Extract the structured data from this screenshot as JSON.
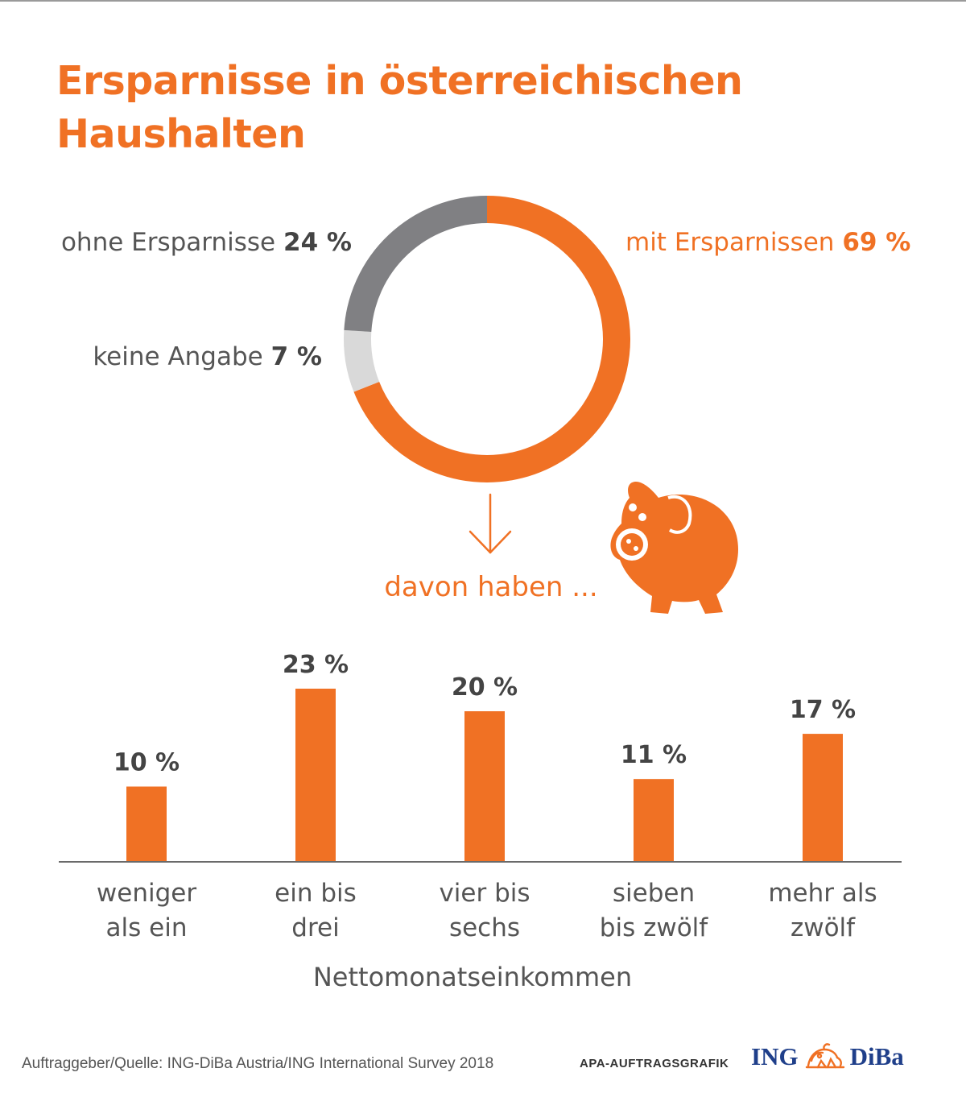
{
  "title_lines": [
    "Ersparnisse in österreichischen",
    "Haushalten"
  ],
  "colors": {
    "orange": "#f07124",
    "dark_gray": "#808083",
    "light_gray": "#d9d9d9",
    "text_gray": "#555555",
    "value_text": "#444444",
    "logo_blue": "#1f3f8a"
  },
  "chart_data": [
    {
      "type": "pie",
      "donut": true,
      "slices": [
        {
          "label": "mit Ersparnissen",
          "value_text": "69 %",
          "value": 69,
          "color": "#f07124"
        },
        {
          "label": "keine Angabe",
          "value_text": "7 %",
          "value": 7,
          "color": "#d9d9d9"
        },
        {
          "label": "ohne Ersparnisse",
          "value_text": "24 %",
          "value": 24,
          "color": "#808083"
        }
      ]
    },
    {
      "type": "bar",
      "caption": "davon haben ...",
      "xlabel": "Nettomonatseinkommen",
      "ylim": [
        0,
        23
      ],
      "categories": [
        [
          "weniger",
          "als ein"
        ],
        [
          "ein bis",
          "drei"
        ],
        [
          "vier bis",
          "sechs"
        ],
        [
          "sieben",
          "bis zwölf"
        ],
        [
          "mehr als",
          "zwölf"
        ]
      ],
      "values": [
        10,
        23,
        20,
        11,
        17
      ],
      "value_labels": [
        "10 %",
        "23 %",
        "20 %",
        "11 %",
        "17 %"
      ],
      "grid": false
    }
  ],
  "footer": {
    "source": "Auftraggeber/Quelle: ING-DiBa Austria/ING International Survey 2018",
    "apa": "APA-AUFTRAGSGRAFIK",
    "logo_left": "ING",
    "logo_right": "DiBa"
  },
  "icons": [
    "piggy-bank-icon",
    "arrow-down-icon",
    "ing-lion-logo"
  ]
}
